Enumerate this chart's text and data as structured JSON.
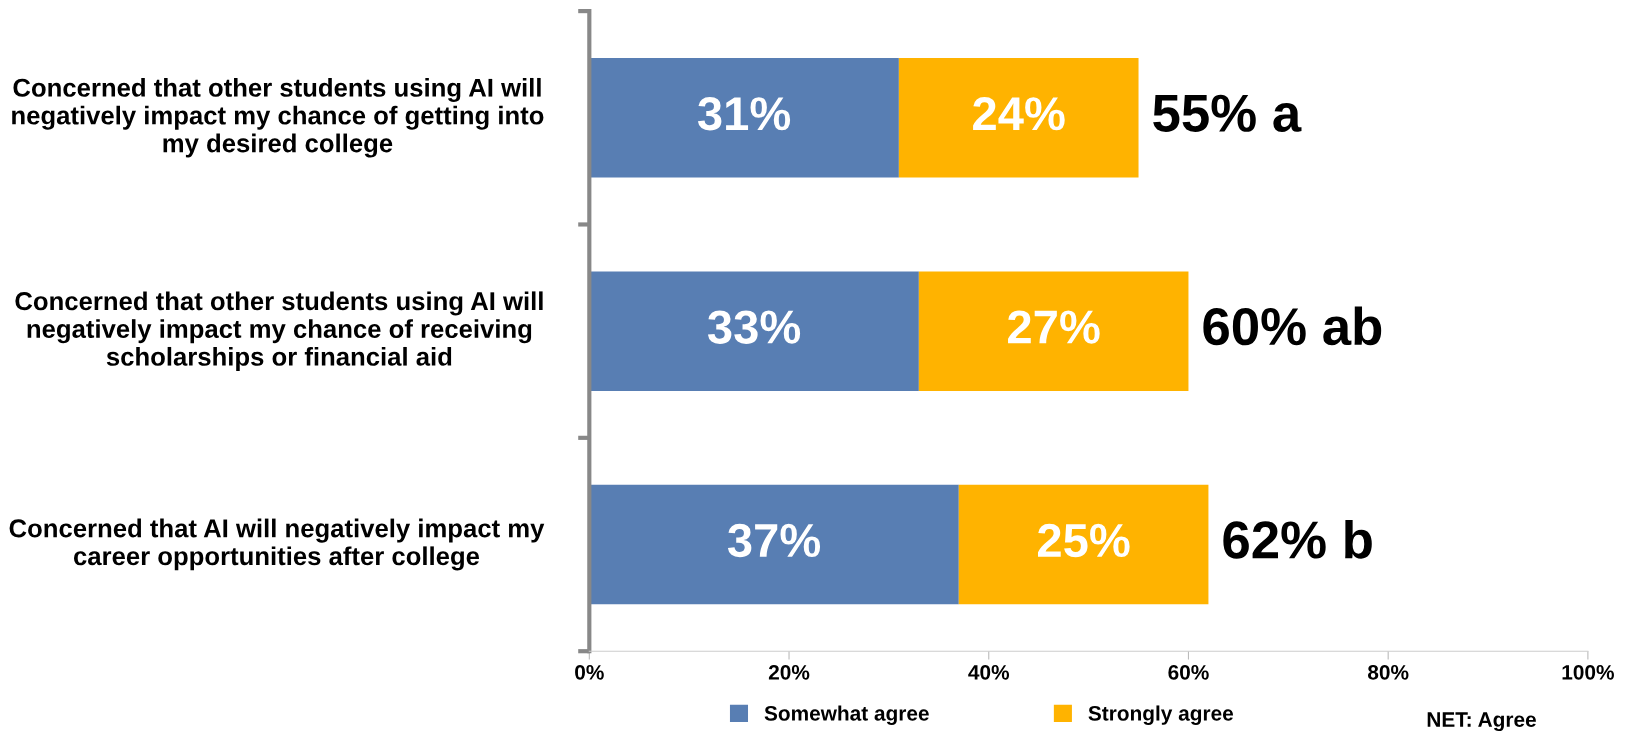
{
  "chart_data": {
    "type": "bar",
    "orientation": "horizontal",
    "stacked": true,
    "categories": [
      "Concerned that other students using AI will negatively impact my chance of getting into my desired college",
      "Concerned that other students using AI will negatively impact my chance of receiving scholarships or financial aid",
      "Concerned that AI will negatively impact my career opportunities after college"
    ],
    "series": [
      {
        "name": "Somewhat agree",
        "color": "#587eb3",
        "values": [
          31,
          33,
          37
        ],
        "value_labels": [
          "31%",
          "33%",
          "37%"
        ]
      },
      {
        "name": "Strongly agree",
        "color": "#ffb300",
        "values": [
          24,
          27,
          25
        ],
        "value_labels": [
          "24%",
          "27%",
          "25%"
        ]
      }
    ],
    "totals": [
      "55% a",
      "60% ab",
      "62% b"
    ],
    "xlim": [
      0,
      100
    ],
    "xticks": [
      {
        "value": 0,
        "label": "0%"
      },
      {
        "value": 20,
        "label": "20%"
      },
      {
        "value": 40,
        "label": "40%"
      },
      {
        "value": 60,
        "label": "60%"
      },
      {
        "value": 80,
        "label": "80%"
      },
      {
        "value": 100,
        "label": "100%"
      }
    ],
    "annotations": [
      "NET: Agree"
    ],
    "legend": "bottom",
    "grid": false
  }
}
